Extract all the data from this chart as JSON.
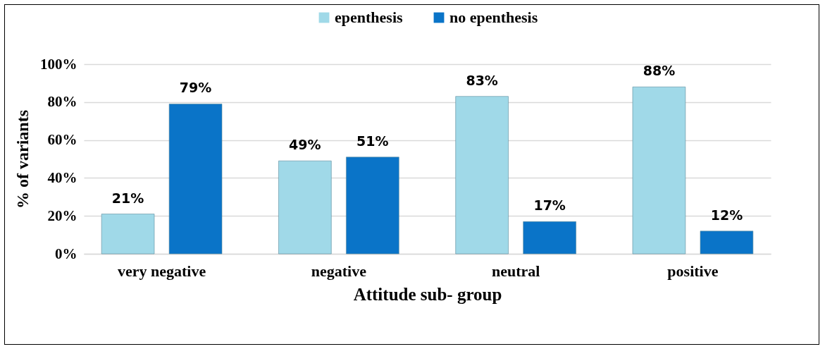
{
  "chart_data": {
    "type": "bar",
    "xlabel": "Attitude sub- group",
    "ylabel": "% of variants",
    "categories": [
      "very negative",
      "negative",
      "neutral",
      "positive"
    ],
    "series": [
      {
        "name": "epenthesis",
        "color": "#a0d9e8",
        "values": [
          21,
          49,
          83,
          88
        ],
        "value_labels": [
          "21%",
          "49%",
          "83%",
          "88%"
        ]
      },
      {
        "name": "no epenthesis",
        "color": "#0a74c8",
        "values": [
          79,
          51,
          17,
          12
        ],
        "value_labels": [
          "79%",
          "51%",
          "17%",
          "12%"
        ]
      }
    ],
    "ylim": [
      0,
      100
    ],
    "yticks": [
      {
        "value": 0,
        "label": "0%"
      },
      {
        "value": 20,
        "label": "20%"
      },
      {
        "value": 40,
        "label": "40%"
      },
      {
        "value": 60,
        "label": "60%"
      },
      {
        "value": 80,
        "label": "80%"
      },
      {
        "value": 100,
        "label": "100%"
      }
    ],
    "grid": "y",
    "legend": "top"
  }
}
